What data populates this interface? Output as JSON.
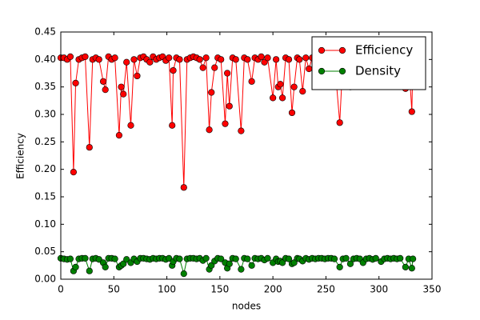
{
  "chart_data": {
    "type": "line",
    "xlabel": "nodes",
    "ylabel": "Efficiency",
    "x": [
      0,
      3,
      6,
      9,
      12,
      14,
      17,
      20,
      23,
      27,
      30,
      33,
      36,
      40,
      42,
      45,
      48,
      51,
      55,
      57,
      59,
      62,
      66,
      69,
      72,
      75,
      78,
      81,
      84,
      87,
      90,
      93,
      96,
      99,
      102,
      105,
      106,
      109,
      112,
      116,
      119,
      122,
      125,
      128,
      131,
      134,
      137,
      140,
      142,
      145,
      148,
      151,
      155,
      157,
      159,
      162,
      165,
      170,
      173,
      176,
      180,
      183,
      186,
      189,
      192,
      195,
      200,
      203,
      205,
      207,
      209,
      212,
      215,
      218,
      220,
      223,
      225,
      228,
      231,
      234,
      237,
      240,
      243,
      246,
      249,
      252,
      255,
      258,
      263,
      266,
      269,
      273,
      276,
      279,
      282,
      285,
      288,
      291,
      294,
      297,
      302,
      305,
      308,
      311,
      314,
      317,
      320,
      325,
      328,
      331,
      332
    ],
    "series": [
      {
        "name": "Efficiency",
        "color": "#ff0000",
        "values": [
          0.403,
          0.403,
          0.4,
          0.405,
          0.195,
          0.357,
          0.4,
          0.403,
          0.405,
          0.24,
          0.4,
          0.403,
          0.4,
          0.36,
          0.345,
          0.405,
          0.4,
          0.403,
          0.262,
          0.35,
          0.337,
          0.395,
          0.28,
          0.4,
          0.37,
          0.403,
          0.405,
          0.4,
          0.395,
          0.405,
          0.4,
          0.403,
          0.405,
          0.398,
          0.403,
          0.28,
          0.38,
          0.403,
          0.4,
          0.167,
          0.4,
          0.403,
          0.405,
          0.403,
          0.4,
          0.385,
          0.403,
          0.272,
          0.34,
          0.385,
          0.403,
          0.4,
          0.283,
          0.375,
          0.315,
          0.403,
          0.4,
          0.27,
          0.403,
          0.4,
          0.36,
          0.403,
          0.4,
          0.405,
          0.395,
          0.403,
          0.33,
          0.4,
          0.35,
          0.355,
          0.33,
          0.403,
          0.4,
          0.303,
          0.35,
          0.403,
          0.4,
          0.342,
          0.403,
          0.383,
          0.403,
          0.4,
          0.405,
          0.403,
          0.4,
          0.403,
          0.405,
          0.4,
          0.285,
          0.4,
          0.403,
          0.35,
          0.4,
          0.403,
          0.4,
          0.403,
          0.4,
          0.403,
          0.4,
          0.403,
          0.357,
          0.4,
          0.403,
          0.4,
          0.403,
          0.4,
          0.403,
          0.347,
          0.4,
          0.305,
          0.4
        ]
      },
      {
        "name": "Density",
        "color": "#008000",
        "values": [
          0.038,
          0.037,
          0.036,
          0.037,
          0.015,
          0.022,
          0.037,
          0.038,
          0.038,
          0.015,
          0.037,
          0.038,
          0.036,
          0.03,
          0.022,
          0.038,
          0.038,
          0.037,
          0.022,
          0.025,
          0.028,
          0.036,
          0.03,
          0.037,
          0.032,
          0.038,
          0.038,
          0.037,
          0.036,
          0.038,
          0.037,
          0.038,
          0.038,
          0.036,
          0.038,
          0.025,
          0.032,
          0.038,
          0.037,
          0.01,
          0.037,
          0.038,
          0.038,
          0.037,
          0.038,
          0.034,
          0.038,
          0.018,
          0.025,
          0.033,
          0.038,
          0.037,
          0.03,
          0.02,
          0.028,
          0.038,
          0.037,
          0.018,
          0.038,
          0.037,
          0.025,
          0.038,
          0.037,
          0.038,
          0.035,
          0.038,
          0.03,
          0.037,
          0.032,
          0.033,
          0.03,
          0.038,
          0.037,
          0.028,
          0.03,
          0.038,
          0.037,
          0.033,
          0.038,
          0.036,
          0.038,
          0.037,
          0.038,
          0.038,
          0.037,
          0.038,
          0.038,
          0.037,
          0.022,
          0.037,
          0.038,
          0.028,
          0.037,
          0.038,
          0.037,
          0.03,
          0.037,
          0.038,
          0.036,
          0.038,
          0.032,
          0.037,
          0.038,
          0.037,
          0.038,
          0.037,
          0.038,
          0.022,
          0.037,
          0.02,
          0.037
        ]
      }
    ],
    "xlim": [
      0,
      350
    ],
    "xticks": [
      0,
      50,
      100,
      150,
      200,
      250,
      300,
      350
    ],
    "ylim": [
      0,
      0.45
    ],
    "yticks": [
      {
        "value": 0,
        "label": "0.00"
      },
      {
        "value": 0.05,
        "label": "0.05"
      },
      {
        "value": 0.1,
        "label": "0.10"
      },
      {
        "value": 0.15,
        "label": "0.15"
      },
      {
        "value": 0.2,
        "label": "0.20"
      },
      {
        "value": 0.25,
        "label": "0.25"
      },
      {
        "value": 0.3,
        "label": "0.30"
      },
      {
        "value": 0.35,
        "label": "0.35"
      },
      {
        "value": 0.4,
        "label": "0.40"
      },
      {
        "value": 0.45,
        "label": "0.45"
      }
    ],
    "legend": "upper right",
    "grid": false
  }
}
